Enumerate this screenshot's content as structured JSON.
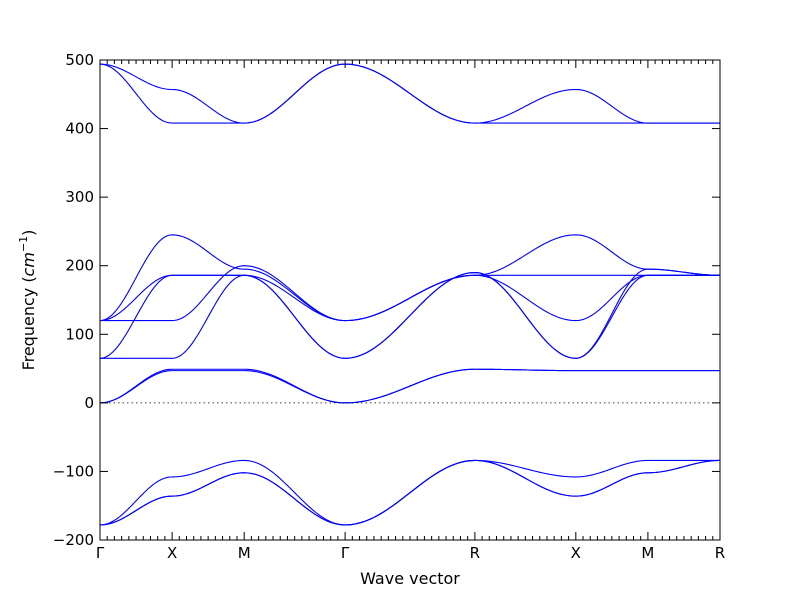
{
  "chart_data": {
    "type": "line",
    "title": "",
    "xlabel": "Wave vector",
    "ylabel": "Frequency (cm⁻¹)",
    "ylabel_main": "Frequency (",
    "ylabel_unit": "cm",
    "ylabel_exp": "−1",
    "ylabel_close": ")",
    "ylim": [
      -200,
      500
    ],
    "yticks": [
      -200,
      -100,
      0,
      100,
      200,
      300,
      400,
      500
    ],
    "xlim": [
      0,
      8.6
    ],
    "high_symmetry_points": [
      {
        "label": "Γ",
        "x": 0
      },
      {
        "label": "X",
        "x": 1
      },
      {
        "label": "M",
        "x": 2
      },
      {
        "label": "Γ",
        "x": 3.4
      },
      {
        "label": "R",
        "x": 5.2
      },
      {
        "label": "X",
        "x": 6.6
      },
      {
        "label": "M",
        "x": 7.6
      },
      {
        "label": "R",
        "x": 8.6
      }
    ],
    "grid": false,
    "zero_line": true,
    "line_color": "#0000ff",
    "series": [
      {
        "segments": [
          [
            494,
            457
          ],
          [
            457,
            408
          ],
          [
            408,
            494
          ],
          [
            494,
            408
          ],
          [
            408,
            457
          ],
          [
            457,
            408
          ],
          [
            408,
            408
          ]
        ]
      },
      {
        "segments": [
          [
            494,
            408
          ],
          [
            408,
            408
          ],
          [
            408,
            494
          ],
          [
            494,
            408
          ],
          [
            408,
            408
          ],
          [
            408,
            408
          ],
          [
            408,
            408
          ]
        ]
      },
      {
        "segments": [
          [
            120,
            245
          ],
          [
            245,
            195
          ],
          [
            195,
            120
          ],
          [
            120,
            186
          ],
          [
            186,
            245
          ],
          [
            245,
            195
          ],
          [
            195,
            186
          ]
        ]
      },
      {
        "segments": [
          [
            120,
            186
          ],
          [
            186,
            186
          ],
          [
            186,
            120
          ],
          [
            120,
            186
          ],
          [
            186,
            186
          ],
          [
            186,
            186
          ],
          [
            186,
            186
          ]
        ]
      },
      {
        "segments": [
          [
            120,
            120
          ],
          [
            120,
            200
          ],
          [
            200,
            120
          ],
          [
            120,
            186
          ],
          [
            186,
            120
          ],
          [
            120,
            186
          ],
          [
            186,
            186
          ]
        ]
      },
      {
        "segments": [
          [
            65,
            186
          ],
          [
            186,
            186
          ],
          [
            186,
            65
          ],
          [
            65,
            190
          ],
          [
            190,
            65
          ],
          [
            65,
            195
          ],
          [
            195,
            186
          ]
        ]
      },
      {
        "segments": [
          [
            65,
            65
          ],
          [
            65,
            186
          ],
          [
            186,
            65
          ],
          [
            65,
            190
          ],
          [
            190,
            65
          ],
          [
            65,
            186
          ],
          [
            186,
            186
          ]
        ]
      },
      {
        "segments": [
          [
            0,
            49
          ],
          [
            49,
            49
          ],
          [
            49,
            0
          ],
          [
            0,
            49
          ],
          [
            49,
            47
          ],
          [
            47,
            47
          ],
          [
            47,
            47
          ]
        ]
      },
      {
        "segments": [
          [
            0,
            47
          ],
          [
            47,
            47
          ],
          [
            47,
            0
          ],
          [
            0,
            49
          ],
          [
            49,
            47
          ],
          [
            47,
            47
          ],
          [
            47,
            47
          ]
        ]
      },
      {
        "segments": [
          [
            -178,
            -108
          ],
          [
            -108,
            -84
          ],
          [
            -84,
            -178
          ],
          [
            -178,
            -84
          ],
          [
            -84,
            -108
          ],
          [
            -108,
            -84
          ],
          [
            -84,
            -84
          ]
        ]
      },
      {
        "segments": [
          [
            -178,
            -136
          ],
          [
            -136,
            -102
          ],
          [
            -102,
            -178
          ],
          [
            -178,
            -84
          ],
          [
            -84,
            -136
          ],
          [
            -136,
            -102
          ],
          [
            -102,
            -84
          ]
        ]
      },
      {
        "segments": [
          [
            -178,
            -136
          ],
          [
            -136,
            -102
          ],
          [
            -102,
            -178
          ],
          [
            -178,
            -84
          ],
          [
            -84,
            -136
          ],
          [
            -136,
            -102
          ],
          [
            -102,
            -84
          ]
        ]
      }
    ]
  }
}
